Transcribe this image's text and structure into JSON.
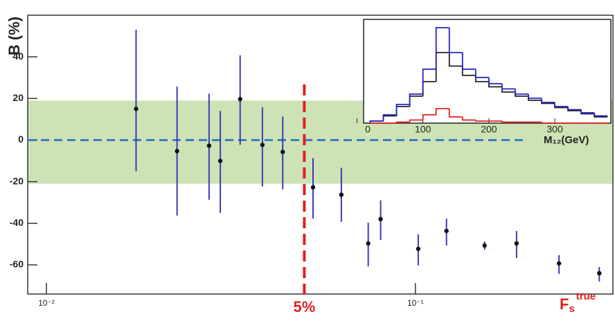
{
  "chart_data": [
    {
      "type": "scatter",
      "y_label": "B (%)",
      "x_label": {
        "base": "F",
        "sub": "s",
        "sup": "true"
      },
      "log_x": true,
      "xlim": [
        0.0089,
        0.343
      ],
      "ylim": [
        -74,
        60
      ],
      "xticks": [
        {
          "value": 0.01,
          "label": "10⁻²"
        },
        {
          "value": 0.1,
          "label": "10⁻¹"
        }
      ],
      "yticks": [
        -60,
        -40,
        -20,
        0,
        20,
        40
      ],
      "band": {
        "ylim": [
          -21,
          19
        ],
        "color": "#cde3b5"
      },
      "hline": {
        "y": 0,
        "x_end": 0.2,
        "color": "#3a7cc4"
      },
      "vline": {
        "x": 0.05,
        "color": "#e02020",
        "label": "5%"
      },
      "label_color": "#e02020",
      "x": [
        0.0175,
        0.0226,
        0.0276,
        0.0296,
        0.0335,
        0.0385,
        0.0437,
        0.0528,
        0.063,
        0.0745,
        0.0805,
        0.1018,
        0.1214,
        0.154,
        0.188,
        0.245,
        0.315
      ],
      "series": [
        {
          "color": "#111111",
          "errorbar_color": "#3a3ab8",
          "values": [
            15,
            -5.3,
            -2.7,
            -10,
            19.7,
            -2.3,
            -5.7,
            -22.7,
            -26.3,
            -49.7,
            -38,
            -52.3,
            -43.7,
            -50.7,
            -49.7,
            -59.3,
            -64
          ],
          "yerr_minus": [
            30,
            31,
            26,
            25,
            22,
            20,
            18,
            15,
            13,
            11,
            10,
            8,
            7,
            2,
            7,
            5,
            4
          ],
          "yerr_plus": [
            38,
            31,
            25,
            24,
            21,
            18,
            17,
            14,
            13,
            10,
            9,
            7,
            6,
            2,
            6,
            4,
            3
          ]
        }
      ]
    },
    {
      "type": "histogram",
      "x_label": "M₁₂(GeV)",
      "xlim": [
        10,
        385
      ],
      "ylim": [
        0,
        100
      ],
      "xticks": [
        0,
        100,
        200,
        300
      ],
      "bins": [
        20,
        40,
        60,
        80,
        100,
        120,
        140,
        160,
        180,
        200,
        220,
        240,
        260,
        280,
        300,
        320,
        340,
        360,
        380
      ],
      "series": [
        {
          "color": "#222222",
          "values": [
            2,
            7,
            16,
            26,
            40,
            68,
            55,
            46,
            40,
            35,
            30,
            26,
            22,
            19,
            15,
            12,
            9,
            6
          ]
        },
        {
          "color": "#2323c8",
          "values": [
            2,
            8,
            18,
            28,
            52,
            92,
            68,
            52,
            44,
            38,
            33,
            28,
            24,
            20,
            16,
            13,
            10,
            7
          ]
        },
        {
          "color": "#e02020",
          "values": [
            0,
            0,
            1,
            3,
            8,
            14,
            6,
            3,
            2,
            2,
            1,
            1,
            1,
            0,
            0,
            0,
            0,
            0
          ]
        }
      ]
    }
  ]
}
